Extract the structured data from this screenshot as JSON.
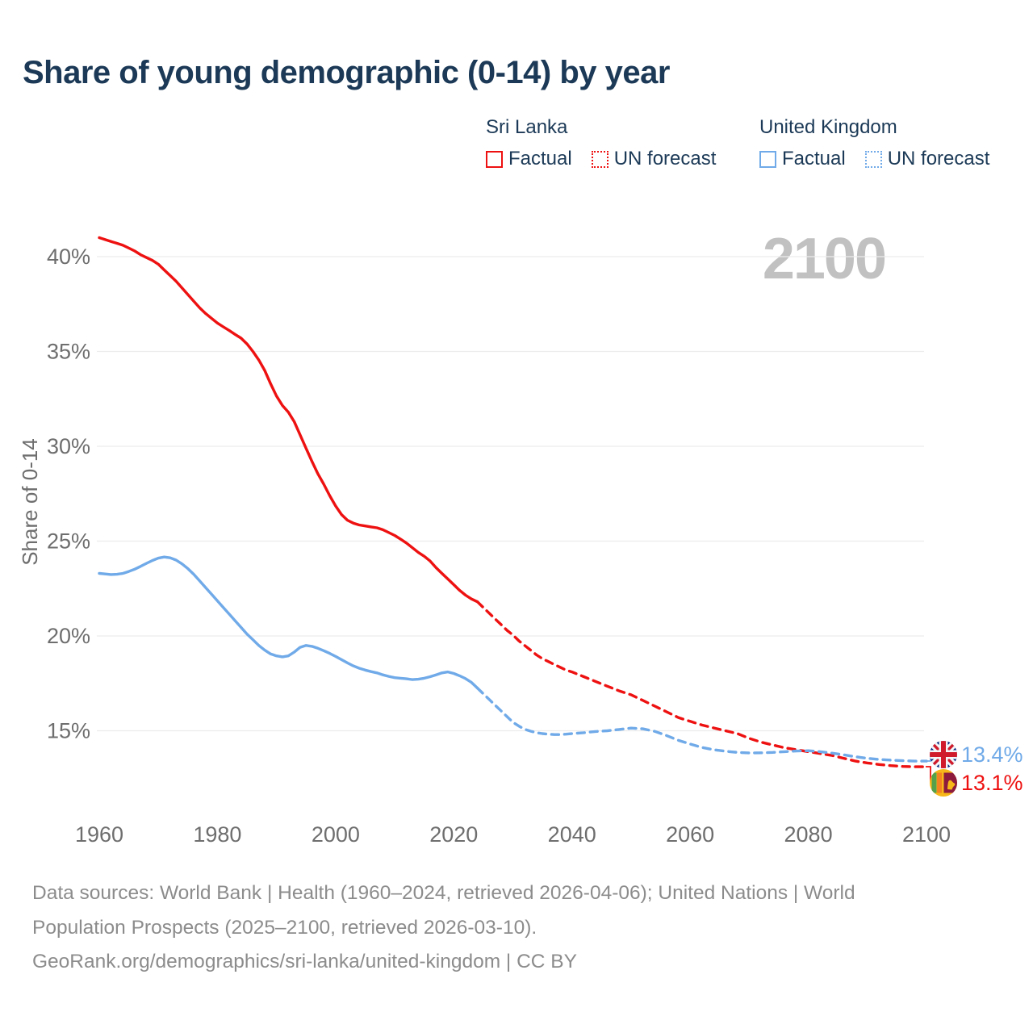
{
  "title": "Share of young demographic (0-14) by year",
  "watermark": "2100",
  "legend": {
    "groups": [
      {
        "country": "Sri Lanka",
        "items": [
          {
            "label": "Factual",
            "style": "solid"
          },
          {
            "label": "UN forecast",
            "style": "dashed"
          }
        ]
      },
      {
        "country": "United Kingdom",
        "items": [
          {
            "label": "Factual",
            "style": "solid"
          },
          {
            "label": "UN forecast",
            "style": "dashed"
          }
        ]
      }
    ]
  },
  "y_axis": {
    "label": "Share of 0-14",
    "ticks": [
      "40%",
      "35%",
      "30%",
      "25%",
      "20%",
      "15%"
    ],
    "tick_values": [
      40,
      35,
      30,
      25,
      20,
      15
    ]
  },
  "x_axis": {
    "ticks": [
      1960,
      1980,
      2000,
      2020,
      2040,
      2060,
      2080,
      2100
    ]
  },
  "end_labels": {
    "uk": {
      "flag": "united-kingdom-flag",
      "value": "13.4%"
    },
    "sri_lanka": {
      "flag": "sri-lanka-flag",
      "value": "13.1%"
    }
  },
  "footer": {
    "line1": "Data sources: World Bank | Health (1960–2024, retrieved 2026-04-06); United Nations | World",
    "line2": "Population Prospects (2025–2100, retrieved 2026-03-10).",
    "line3": "GeoRank.org/demographics/sri-lanka/united-kingdom | CC BY"
  },
  "colors": {
    "sri_lanka": "#ee1111",
    "united_kingdom": "#70aae8",
    "title_text": "#1c3a57",
    "axis_text": "#6e6e6e",
    "grid": "#ececec",
    "watermark": "#c1c1c1",
    "footer_text": "#8c8c8c"
  },
  "chart_data": {
    "type": "line",
    "title": "Share of young demographic (0-14) by year",
    "xlabel": "",
    "ylabel": "Share of 0-14",
    "xlim": [
      1960,
      2100
    ],
    "ylim": [
      13,
      42
    ],
    "grid": "horizontal",
    "legend_position": "top-right",
    "series": [
      {
        "name": "Sri Lanka — Factual",
        "color": "sri_lanka",
        "line_style": "solid",
        "points": [
          [
            1960,
            41.0
          ],
          [
            1961,
            40.9
          ],
          [
            1962,
            40.8
          ],
          [
            1963,
            40.7
          ],
          [
            1964,
            40.6
          ],
          [
            1965,
            40.45
          ],
          [
            1966,
            40.3
          ],
          [
            1967,
            40.1
          ],
          [
            1968,
            39.95
          ],
          [
            1969,
            39.8
          ],
          [
            1970,
            39.6
          ],
          [
            1971,
            39.3
          ],
          [
            1972,
            39.0
          ],
          [
            1973,
            38.7
          ],
          [
            1974,
            38.35
          ],
          [
            1975,
            38.0
          ],
          [
            1976,
            37.65
          ],
          [
            1977,
            37.3
          ],
          [
            1978,
            37.0
          ],
          [
            1979,
            36.75
          ],
          [
            1980,
            36.5
          ],
          [
            1981,
            36.3
          ],
          [
            1982,
            36.1
          ],
          [
            1983,
            35.9
          ],
          [
            1984,
            35.7
          ],
          [
            1985,
            35.4
          ],
          [
            1986,
            35.0
          ],
          [
            1987,
            34.55
          ],
          [
            1988,
            34.0
          ],
          [
            1989,
            33.3
          ],
          [
            1990,
            32.65
          ],
          [
            1991,
            32.15
          ],
          [
            1992,
            31.8
          ],
          [
            1993,
            31.3
          ],
          [
            1994,
            30.6
          ],
          [
            1995,
            29.9
          ],
          [
            1996,
            29.2
          ],
          [
            1997,
            28.55
          ],
          [
            1998,
            28.0
          ],
          [
            1999,
            27.4
          ],
          [
            2000,
            26.85
          ],
          [
            2001,
            26.4
          ],
          [
            2002,
            26.1
          ],
          [
            2003,
            25.95
          ],
          [
            2004,
            25.85
          ],
          [
            2005,
            25.8
          ],
          [
            2006,
            25.75
          ],
          [
            2007,
            25.7
          ],
          [
            2008,
            25.6
          ],
          [
            2009,
            25.45
          ],
          [
            2010,
            25.3
          ],
          [
            2011,
            25.1
          ],
          [
            2012,
            24.9
          ],
          [
            2013,
            24.65
          ],
          [
            2014,
            24.4
          ],
          [
            2015,
            24.2
          ],
          [
            2016,
            23.95
          ],
          [
            2017,
            23.6
          ],
          [
            2018,
            23.3
          ],
          [
            2019,
            23.0
          ],
          [
            2020,
            22.7
          ],
          [
            2021,
            22.4
          ],
          [
            2022,
            22.15
          ],
          [
            2023,
            21.95
          ],
          [
            2024,
            21.8
          ]
        ]
      },
      {
        "name": "Sri Lanka — UN forecast",
        "color": "sri_lanka",
        "line_style": "dashed",
        "points": [
          [
            2024,
            21.8
          ],
          [
            2025,
            21.5
          ],
          [
            2026,
            21.2
          ],
          [
            2027,
            20.9
          ],
          [
            2028,
            20.6
          ],
          [
            2029,
            20.3
          ],
          [
            2030,
            20.05
          ],
          [
            2031,
            19.75
          ],
          [
            2032,
            19.5
          ],
          [
            2033,
            19.25
          ],
          [
            2034,
            19.0
          ],
          [
            2035,
            18.8
          ],
          [
            2036,
            18.65
          ],
          [
            2037,
            18.5
          ],
          [
            2038,
            18.35
          ],
          [
            2039,
            18.2
          ],
          [
            2040,
            18.1
          ],
          [
            2042,
            17.85
          ],
          [
            2044,
            17.6
          ],
          [
            2046,
            17.35
          ],
          [
            2048,
            17.1
          ],
          [
            2050,
            16.9
          ],
          [
            2052,
            16.6
          ],
          [
            2054,
            16.3
          ],
          [
            2056,
            16.0
          ],
          [
            2058,
            15.7
          ],
          [
            2060,
            15.5
          ],
          [
            2062,
            15.3
          ],
          [
            2064,
            15.15
          ],
          [
            2066,
            15.0
          ],
          [
            2068,
            14.85
          ],
          [
            2070,
            14.6
          ],
          [
            2072,
            14.4
          ],
          [
            2074,
            14.25
          ],
          [
            2076,
            14.1
          ],
          [
            2078,
            14.0
          ],
          [
            2080,
            13.9
          ],
          [
            2082,
            13.8
          ],
          [
            2084,
            13.7
          ],
          [
            2086,
            13.55
          ],
          [
            2088,
            13.4
          ],
          [
            2090,
            13.3
          ],
          [
            2092,
            13.22
          ],
          [
            2094,
            13.16
          ],
          [
            2096,
            13.12
          ],
          [
            2098,
            13.1
          ],
          [
            2100,
            13.1
          ]
        ]
      },
      {
        "name": "United Kingdom — Factual",
        "color": "united_kingdom",
        "line_style": "solid",
        "points": [
          [
            1960,
            23.3
          ],
          [
            1961,
            23.27
          ],
          [
            1962,
            23.24
          ],
          [
            1963,
            23.25
          ],
          [
            1964,
            23.3
          ],
          [
            1965,
            23.4
          ],
          [
            1966,
            23.52
          ],
          [
            1967,
            23.67
          ],
          [
            1968,
            23.83
          ],
          [
            1969,
            23.98
          ],
          [
            1970,
            24.1
          ],
          [
            1971,
            24.16
          ],
          [
            1972,
            24.12
          ],
          [
            1973,
            24.0
          ],
          [
            1974,
            23.8
          ],
          [
            1975,
            23.55
          ],
          [
            1976,
            23.25
          ],
          [
            1977,
            22.9
          ],
          [
            1978,
            22.55
          ],
          [
            1979,
            22.2
          ],
          [
            1980,
            21.85
          ],
          [
            1981,
            21.5
          ],
          [
            1982,
            21.15
          ],
          [
            1983,
            20.8
          ],
          [
            1984,
            20.45
          ],
          [
            1985,
            20.1
          ],
          [
            1986,
            19.8
          ],
          [
            1987,
            19.5
          ],
          [
            1988,
            19.25
          ],
          [
            1989,
            19.05
          ],
          [
            1990,
            18.95
          ],
          [
            1991,
            18.9
          ],
          [
            1992,
            18.95
          ],
          [
            1993,
            19.15
          ],
          [
            1994,
            19.4
          ],
          [
            1995,
            19.5
          ],
          [
            1996,
            19.45
          ],
          [
            1997,
            19.35
          ],
          [
            1998,
            19.22
          ],
          [
            1999,
            19.08
          ],
          [
            2000,
            18.92
          ],
          [
            2001,
            18.75
          ],
          [
            2002,
            18.58
          ],
          [
            2003,
            18.42
          ],
          [
            2004,
            18.3
          ],
          [
            2005,
            18.2
          ],
          [
            2006,
            18.12
          ],
          [
            2007,
            18.05
          ],
          [
            2008,
            17.95
          ],
          [
            2009,
            17.87
          ],
          [
            2010,
            17.8
          ],
          [
            2011,
            17.77
          ],
          [
            2012,
            17.74
          ],
          [
            2013,
            17.7
          ],
          [
            2014,
            17.72
          ],
          [
            2015,
            17.77
          ],
          [
            2016,
            17.85
          ],
          [
            2017,
            17.95
          ],
          [
            2018,
            18.05
          ],
          [
            2019,
            18.1
          ],
          [
            2020,
            18.02
          ],
          [
            2021,
            17.9
          ],
          [
            2022,
            17.75
          ],
          [
            2023,
            17.55
          ],
          [
            2024,
            17.25
          ]
        ]
      },
      {
        "name": "United Kingdom — UN forecast",
        "color": "united_kingdom",
        "line_style": "dashed",
        "points": [
          [
            2024,
            17.25
          ],
          [
            2025,
            16.95
          ],
          [
            2026,
            16.65
          ],
          [
            2027,
            16.35
          ],
          [
            2028,
            16.05
          ],
          [
            2029,
            15.75
          ],
          [
            2030,
            15.45
          ],
          [
            2031,
            15.25
          ],
          [
            2032,
            15.08
          ],
          [
            2033,
            14.98
          ],
          [
            2034,
            14.9
          ],
          [
            2035,
            14.85
          ],
          [
            2036,
            14.82
          ],
          [
            2037,
            14.8
          ],
          [
            2038,
            14.8
          ],
          [
            2039,
            14.82
          ],
          [
            2040,
            14.85
          ],
          [
            2042,
            14.9
          ],
          [
            2044,
            14.96
          ],
          [
            2046,
            15.0
          ],
          [
            2048,
            15.07
          ],
          [
            2050,
            15.14
          ],
          [
            2052,
            15.1
          ],
          [
            2054,
            14.97
          ],
          [
            2056,
            14.75
          ],
          [
            2058,
            14.5
          ],
          [
            2060,
            14.3
          ],
          [
            2062,
            14.12
          ],
          [
            2064,
            14.0
          ],
          [
            2066,
            13.92
          ],
          [
            2068,
            13.86
          ],
          [
            2070,
            13.83
          ],
          [
            2072,
            13.84
          ],
          [
            2074,
            13.86
          ],
          [
            2076,
            13.9
          ],
          [
            2078,
            13.93
          ],
          [
            2080,
            13.95
          ],
          [
            2082,
            13.9
          ],
          [
            2084,
            13.82
          ],
          [
            2086,
            13.73
          ],
          [
            2088,
            13.63
          ],
          [
            2090,
            13.55
          ],
          [
            2092,
            13.49
          ],
          [
            2094,
            13.45
          ],
          [
            2096,
            13.42
          ],
          [
            2098,
            13.4
          ],
          [
            2100,
            13.4
          ]
        ]
      }
    ]
  }
}
